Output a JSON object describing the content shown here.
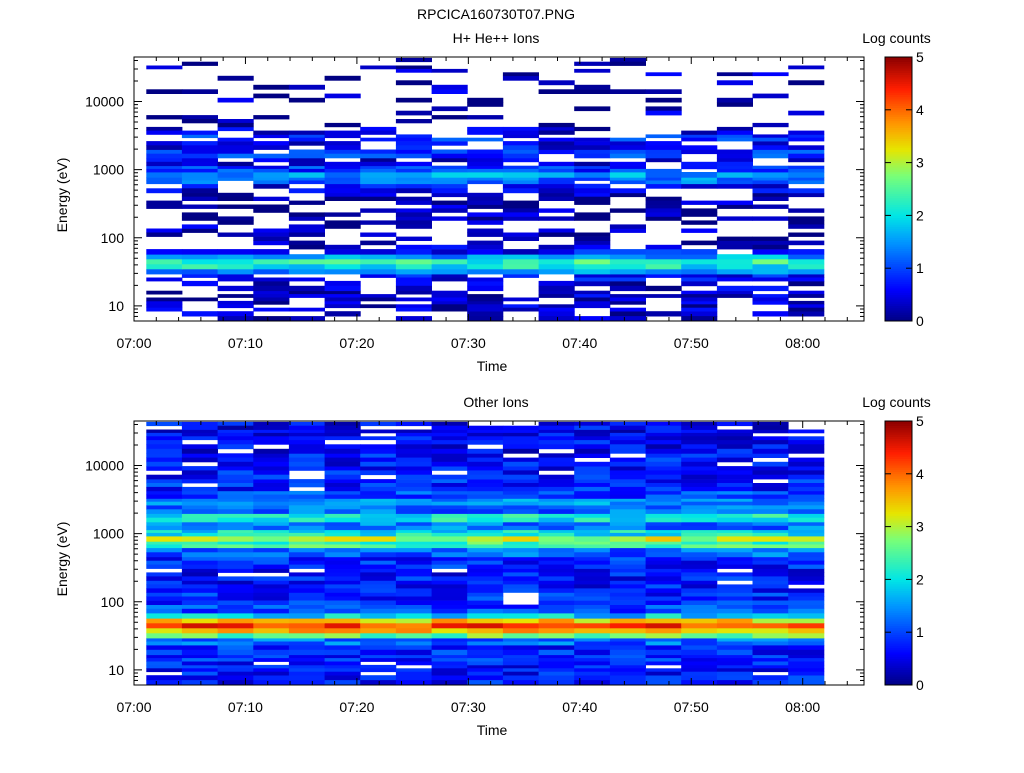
{
  "figure_title": "RPCICA160730T07.PNG",
  "chart_data": [
    {
      "type": "heatmap",
      "title": "H+ He++ Ions",
      "xlabel": "Time",
      "ylabel": "Energy (eV)",
      "x_tick_labels": [
        "07:00",
        "07:10",
        "07:20",
        "07:30",
        "07:40",
        "07:50",
        "08:00"
      ],
      "x_range_minutes": [
        0,
        65.5
      ],
      "x_tick_minutes": [
        0,
        10,
        20,
        30,
        40,
        50,
        60
      ],
      "y_scale": "log",
      "y_range_eV": [
        6,
        45000
      ],
      "y_tick_labels": [
        "10",
        "100",
        "1000",
        "10000"
      ],
      "y_tick_values": [
        10,
        100,
        1000,
        10000
      ],
      "colorbar": {
        "label": "Log counts",
        "range": [
          0,
          5
        ],
        "tick_labels": [
          "0",
          "1",
          "2",
          "3",
          "4",
          "5"
        ],
        "colormap": "rainbow (dark blue to dark red)"
      },
      "time_bin_count": 19,
      "time_bin_start_minutes": 1.1,
      "time_bin_width_minutes": 3.2,
      "energy_bands": [
        {
          "energy_eV": 7,
          "log_counts": 0.3,
          "fill_fraction": 0.45
        },
        {
          "energy_eV": 10,
          "log_counts": 0.3,
          "fill_fraction": 0.6
        },
        {
          "energy_eV": 14,
          "log_counts": 0.3,
          "fill_fraction": 0.6
        },
        {
          "energy_eV": 20,
          "log_counts": 0.3,
          "fill_fraction": 0.55
        },
        {
          "energy_eV": 27,
          "log_counts": 0.6,
          "fill_fraction": 0.6
        },
        {
          "energy_eV": 32,
          "log_counts": 1.5,
          "fill_fraction": 0.9
        },
        {
          "energy_eV": 38,
          "log_counts": 2.0,
          "fill_fraction": 1.0
        },
        {
          "energy_eV": 45,
          "log_counts": 2.3,
          "fill_fraction": 1.0
        },
        {
          "energy_eV": 53,
          "log_counts": 1.5,
          "fill_fraction": 1.0
        },
        {
          "energy_eV": 62,
          "log_counts": 0.7,
          "fill_fraction": 0.9
        },
        {
          "energy_eV": 75,
          "log_counts": 0.3,
          "fill_fraction": 0.55
        },
        {
          "energy_eV": 110,
          "log_counts": 0.2,
          "fill_fraction": 0.45
        },
        {
          "energy_eV": 170,
          "log_counts": 0.2,
          "fill_fraction": 0.45
        },
        {
          "energy_eV": 250,
          "log_counts": 0.2,
          "fill_fraction": 0.45
        },
        {
          "energy_eV": 380,
          "log_counts": 0.3,
          "fill_fraction": 0.55
        },
        {
          "energy_eV": 550,
          "log_counts": 0.5,
          "fill_fraction": 0.7
        },
        {
          "energy_eV": 700,
          "log_counts": 1.3,
          "fill_fraction": 0.95
        },
        {
          "energy_eV": 850,
          "log_counts": 1.6,
          "fill_fraction": 1.0
        },
        {
          "energy_eV": 1000,
          "log_counts": 0.9,
          "fill_fraction": 0.9
        },
        {
          "energy_eV": 1300,
          "log_counts": 0.5,
          "fill_fraction": 0.75
        },
        {
          "energy_eV": 1700,
          "log_counts": 0.9,
          "fill_fraction": 0.9
        },
        {
          "energy_eV": 2300,
          "log_counts": 0.6,
          "fill_fraction": 0.8
        },
        {
          "energy_eV": 3000,
          "log_counts": 0.8,
          "fill_fraction": 0.75
        },
        {
          "energy_eV": 3600,
          "log_counts": 0.3,
          "fill_fraction": 0.55
        },
        {
          "energy_eV": 5000,
          "log_counts": 0.2,
          "fill_fraction": 0.2
        },
        {
          "energy_eV": 8000,
          "log_counts": 0.2,
          "fill_fraction": 0.15
        },
        {
          "energy_eV": 12000,
          "log_counts": 0.2,
          "fill_fraction": 0.2
        },
        {
          "energy_eV": 19000,
          "log_counts": 0.2,
          "fill_fraction": 0.2
        },
        {
          "energy_eV": 30000,
          "log_counts": 0.2,
          "fill_fraction": 0.3
        },
        {
          "energy_eV": 38000,
          "log_counts": 0.2,
          "fill_fraction": 0.2
        }
      ]
    },
    {
      "type": "heatmap",
      "title": "Other Ions",
      "xlabel": "Time",
      "ylabel": "Energy (eV)",
      "x_tick_labels": [
        "07:00",
        "07:10",
        "07:20",
        "07:30",
        "07:40",
        "07:50",
        "08:00"
      ],
      "x_range_minutes": [
        0,
        65.5
      ],
      "x_tick_minutes": [
        0,
        10,
        20,
        30,
        40,
        50,
        60
      ],
      "y_scale": "log",
      "y_range_eV": [
        6,
        45000
      ],
      "y_tick_labels": [
        "10",
        "100",
        "1000",
        "10000"
      ],
      "y_tick_values": [
        10,
        100,
        1000,
        10000
      ],
      "colorbar": {
        "label": "Log counts",
        "range": [
          0,
          5
        ],
        "tick_labels": [
          "0",
          "1",
          "2",
          "3",
          "4",
          "5"
        ],
        "colormap": "rainbow (dark blue to dark red)"
      },
      "time_bin_count": 19,
      "time_bin_start_minutes": 1.1,
      "time_bin_width_minutes": 3.2,
      "energy_bands": [
        {
          "energy_eV": 7,
          "log_counts": 0.7,
          "fill_fraction": 1.0
        },
        {
          "energy_eV": 10,
          "log_counts": 0.7,
          "fill_fraction": 0.95
        },
        {
          "energy_eV": 14,
          "log_counts": 0.8,
          "fill_fraction": 0.95
        },
        {
          "energy_eV": 20,
          "log_counts": 0.8,
          "fill_fraction": 1.0
        },
        {
          "energy_eV": 27,
          "log_counts": 1.2,
          "fill_fraction": 1.0
        },
        {
          "energy_eV": 32,
          "log_counts": 2.6,
          "fill_fraction": 1.0
        },
        {
          "energy_eV": 38,
          "log_counts": 3.6,
          "fill_fraction": 1.0
        },
        {
          "energy_eV": 45,
          "log_counts": 4.2,
          "fill_fraction": 1.0
        },
        {
          "energy_eV": 53,
          "log_counts": 3.4,
          "fill_fraction": 1.0
        },
        {
          "energy_eV": 62,
          "log_counts": 1.8,
          "fill_fraction": 1.0
        },
        {
          "energy_eV": 75,
          "log_counts": 1.0,
          "fill_fraction": 1.0
        },
        {
          "energy_eV": 110,
          "log_counts": 0.8,
          "fill_fraction": 0.95
        },
        {
          "energy_eV": 170,
          "log_counts": 0.7,
          "fill_fraction": 0.95
        },
        {
          "energy_eV": 250,
          "log_counts": 0.7,
          "fill_fraction": 0.95
        },
        {
          "energy_eV": 380,
          "log_counts": 0.8,
          "fill_fraction": 0.95
        },
        {
          "energy_eV": 550,
          "log_counts": 1.2,
          "fill_fraction": 1.0
        },
        {
          "energy_eV": 700,
          "log_counts": 2.4,
          "fill_fraction": 1.0
        },
        {
          "energy_eV": 850,
          "log_counts": 3.0,
          "fill_fraction": 1.0
        },
        {
          "energy_eV": 1000,
          "log_counts": 2.0,
          "fill_fraction": 1.0
        },
        {
          "energy_eV": 1300,
          "log_counts": 1.3,
          "fill_fraction": 1.0
        },
        {
          "energy_eV": 1700,
          "log_counts": 2.1,
          "fill_fraction": 1.0
        },
        {
          "energy_eV": 2300,
          "log_counts": 1.2,
          "fill_fraction": 1.0
        },
        {
          "energy_eV": 3000,
          "log_counts": 1.4,
          "fill_fraction": 1.0
        },
        {
          "energy_eV": 3600,
          "log_counts": 1.0,
          "fill_fraction": 0.95
        },
        {
          "energy_eV": 5000,
          "log_counts": 0.8,
          "fill_fraction": 0.95
        },
        {
          "energy_eV": 8000,
          "log_counts": 0.7,
          "fill_fraction": 0.9
        },
        {
          "energy_eV": 12000,
          "log_counts": 0.7,
          "fill_fraction": 0.9
        },
        {
          "energy_eV": 19000,
          "log_counts": 0.6,
          "fill_fraction": 0.9
        },
        {
          "energy_eV": 30000,
          "log_counts": 0.6,
          "fill_fraction": 0.9
        },
        {
          "energy_eV": 38000,
          "log_counts": 0.6,
          "fill_fraction": 0.85
        }
      ]
    }
  ]
}
